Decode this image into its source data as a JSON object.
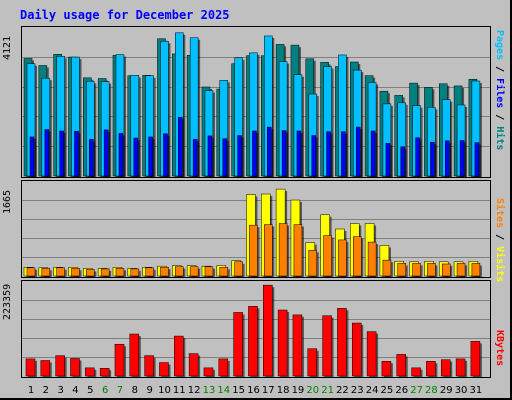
{
  "title": "Daily usage for December 2025",
  "side_labels": {
    "top": {
      "pages": "Pages",
      "sep1": " / ",
      "files": "Files",
      "sep2": " / ",
      "hits": "Hits"
    },
    "mid": {
      "sites": "Sites",
      "sep": " / ",
      "visits": "Visits"
    },
    "bot": {
      "kbytes": "KBytes"
    }
  },
  "colors": {
    "hits": "#008080",
    "files": "#00c0ff",
    "pages": "#0000ff",
    "visits": "#ffff00",
    "sites": "#ff8000",
    "kbytes": "#ff0000",
    "weekend_label": "#008000",
    "weekday_label": "#000000"
  },
  "chart_data": [
    {
      "type": "bar",
      "ymax_label": "4121",
      "ylim": [
        0,
        4121
      ],
      "categories": [
        "1",
        "2",
        "3",
        "4",
        "5",
        "6",
        "7",
        "8",
        "9",
        "10",
        "11",
        "12",
        "13",
        "14",
        "15",
        "16",
        "17",
        "18",
        "19",
        "20",
        "21",
        "22",
        "23",
        "24",
        "25",
        "26",
        "27",
        "28",
        "29",
        "30",
        "31"
      ],
      "weekend_days": [
        "6",
        "7",
        "13",
        "14",
        "20",
        "21",
        "27",
        "28"
      ],
      "series": [
        {
          "name": "Hits",
          "values": [
            3340,
            3140,
            3460,
            3380,
            2790,
            2770,
            3430,
            2850,
            2860,
            3900,
            3470,
            3430,
            2530,
            2470,
            3190,
            3420,
            3420,
            3740,
            3720,
            3330,
            3230,
            3110,
            3240,
            2850,
            2410,
            2290,
            2640,
            2520,
            2620,
            2560,
            2750
          ]
        },
        {
          "name": "Files",
          "values": [
            3190,
            2780,
            3400,
            3380,
            2690,
            2680,
            3450,
            2860,
            2850,
            3830,
            4070,
            3930,
            2430,
            2720,
            3360,
            3500,
            3980,
            3250,
            2880,
            2330,
            3110,
            3440,
            3010,
            2660,
            2050,
            2080,
            2000,
            1950,
            2170,
            2020,
            2700
          ]
        },
        {
          "name": "Pages",
          "values": [
            1110,
            1320,
            1280,
            1270,
            1040,
            1310,
            1210,
            1080,
            1110,
            1200,
            1670,
            1040,
            1140,
            1060,
            1150,
            1280,
            1390,
            1290,
            1280,
            1150,
            1260,
            1260,
            1390,
            1280,
            930,
            830,
            1090,
            960,
            1000,
            1010,
            950
          ]
        }
      ]
    },
    {
      "type": "bar",
      "ymax_label": "1665",
      "ylim": [
        0,
        1665
      ],
      "categories": [
        "1",
        "2",
        "3",
        "4",
        "5",
        "6",
        "7",
        "8",
        "9",
        "10",
        "11",
        "12",
        "13",
        "14",
        "15",
        "16",
        "17",
        "18",
        "19",
        "20",
        "21",
        "22",
        "23",
        "24",
        "25",
        "26",
        "27",
        "28",
        "29",
        "30",
        "31"
      ],
      "series": [
        {
          "name": "Visits",
          "values": [
            160,
            150,
            160,
            160,
            140,
            140,
            160,
            140,
            160,
            180,
            190,
            190,
            180,
            190,
            280,
            1490,
            1500,
            1590,
            1390,
            610,
            1120,
            860,
            960,
            960,
            560,
            270,
            260,
            270,
            260,
            260,
            270
          ]
        },
        {
          "name": "Sites",
          "values": [
            150,
            140,
            150,
            140,
            120,
            130,
            140,
            130,
            150,
            160,
            170,
            170,
            170,
            160,
            260,
            930,
            940,
            960,
            940,
            470,
            740,
            660,
            720,
            620,
            290,
            230,
            230,
            230,
            220,
            230,
            230
          ]
        }
      ]
    },
    {
      "type": "bar",
      "ymax_label": "223359",
      "ylim": [
        0,
        223359
      ],
      "categories": [
        "1",
        "2",
        "3",
        "4",
        "5",
        "6",
        "7",
        "8",
        "9",
        "10",
        "11",
        "12",
        "13",
        "14",
        "15",
        "16",
        "17",
        "18",
        "19",
        "20",
        "21",
        "22",
        "23",
        "24",
        "25",
        "26",
        "27",
        "28",
        "29",
        "30",
        "31"
      ],
      "series": [
        {
          "name": "KBytes",
          "values": [
            42000,
            38000,
            50000,
            43000,
            20000,
            19000,
            78000,
            103000,
            50000,
            33000,
            98000,
            55000,
            20000,
            42000,
            156000,
            171000,
            223000,
            162000,
            150000,
            67000,
            148000,
            166000,
            130000,
            109000,
            36000,
            53000,
            20000,
            36000,
            40000,
            42000,
            85000
          ]
        }
      ]
    }
  ]
}
